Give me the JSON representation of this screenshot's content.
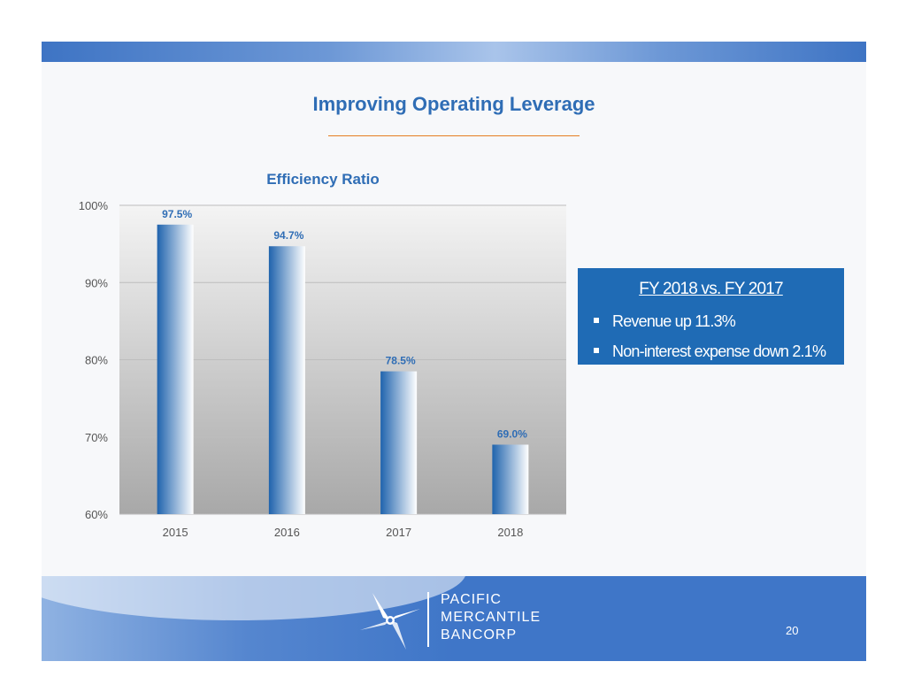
{
  "slide": {
    "title": "Improving Operating Leverage",
    "page_number": "20"
  },
  "info_box": {
    "heading": "FY 2018 vs. FY 2017",
    "bullets": [
      "Revenue up 11.3%",
      "Non-interest expense down 2.1%"
    ]
  },
  "footer": {
    "logo_lines": [
      "PACIFIC",
      "MERCANTILE",
      "BANCORP"
    ]
  },
  "chart_data": {
    "type": "bar",
    "title": "Efficiency Ratio",
    "categories": [
      "2015",
      "2016",
      "2017",
      "2018"
    ],
    "values": [
      97.5,
      94.7,
      78.5,
      69.0
    ],
    "data_labels": [
      "97.5%",
      "94.7%",
      "78.5%",
      "69.0%"
    ],
    "ylim": [
      60,
      100
    ],
    "yticks": [
      60,
      70,
      80,
      90,
      100
    ],
    "ytick_labels": [
      "60%",
      "70%",
      "80%",
      "90%",
      "100%"
    ],
    "grid": true,
    "colors": {
      "bar_dark": "#1f63ad",
      "bar_light": "#ffffff",
      "label": "#2f6db5",
      "gridline": "#bdbdbd"
    }
  }
}
